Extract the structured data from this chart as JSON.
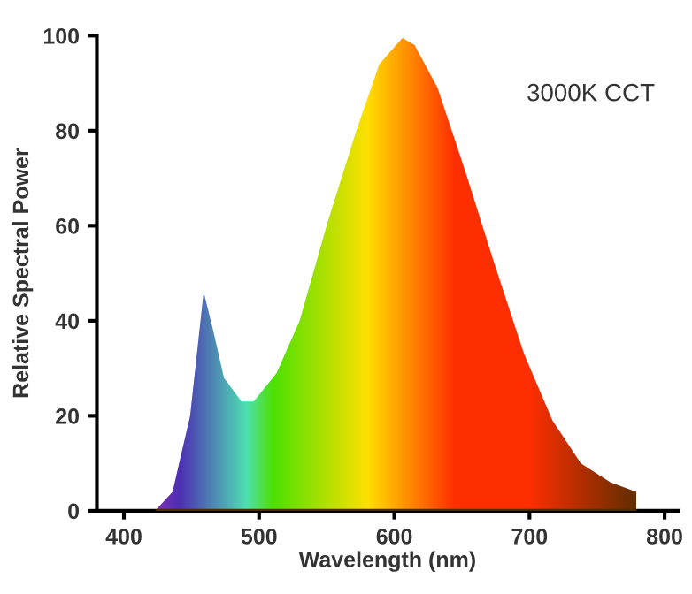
{
  "chart_data": {
    "type": "area",
    "xlabel": "Wavelength (nm)",
    "ylabel": "Relative Spectral Power",
    "annotations": [
      "3000K CCT"
    ],
    "series": [
      {
        "color": "#ff9900",
        "x": [
          423,
          436,
          449,
          459,
          466,
          474,
          487,
          496,
          513,
          530,
          551,
          572,
          589,
          606,
          615,
          632,
          653,
          674,
          696,
          717,
          738,
          760,
          779
        ],
        "values": [
          0,
          4,
          20,
          46,
          38,
          28,
          23,
          23,
          29,
          40,
          61,
          80,
          94,
          99.5,
          98,
          89,
          71,
          52,
          33,
          19,
          10,
          6,
          4
        ]
      }
    ],
    "xlim": [
      380,
      810
    ],
    "ylim": [
      0,
      100
    ],
    "xticks": [
      400,
      500,
      600,
      700,
      800
    ],
    "yticks": [
      0,
      20,
      40,
      60,
      80,
      100
    ],
    "grid": false
  }
}
